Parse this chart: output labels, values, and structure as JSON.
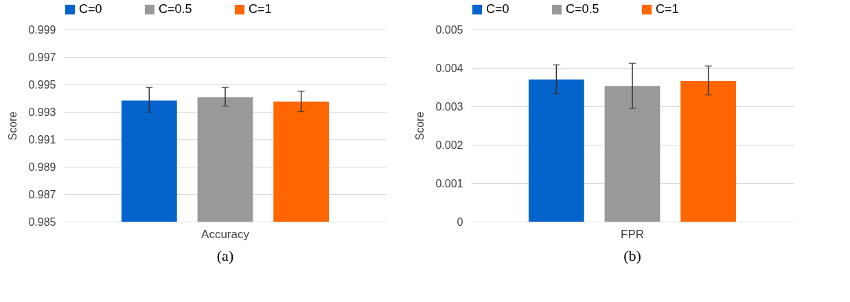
{
  "chart_data": [
    {
      "type": "bar",
      "ylabel": "Score",
      "categories": [
        "Accuracy"
      ],
      "ylim": [
        0.985,
        0.999
      ],
      "yticks": [
        0.985,
        0.987,
        0.989,
        0.991,
        0.993,
        0.995,
        0.997,
        0.999
      ],
      "grid": "y",
      "legend": "top",
      "annotations": [
        "(a)"
      ],
      "series": [
        {
          "name": "C=0",
          "color": "#0563cc",
          "values": [
            0.99383
          ],
          "errors": [
            [
              0.99298,
              0.99478
            ]
          ]
        },
        {
          "name": "C=0.5",
          "color": "#999999",
          "values": [
            0.99407
          ],
          "errors": [
            [
              0.99342,
              0.99478
            ]
          ]
        },
        {
          "name": "C=1",
          "color": "#ff6600",
          "values": [
            0.99375
          ],
          "errors": [
            [
              0.99302,
              0.9945
            ]
          ]
        }
      ]
    },
    {
      "type": "bar",
      "ylabel": "Score",
      "categories": [
        "FPR"
      ],
      "ylim": [
        0,
        0.005
      ],
      "yticks": [
        0,
        0.001,
        0.002,
        0.003,
        0.004,
        0.005
      ],
      "grid": "y",
      "legend": "top",
      "annotations": [
        "(b)"
      ],
      "series": [
        {
          "name": "C=0",
          "color": "#0563cc",
          "values": [
            0.0037
          ],
          "errors": [
            [
              0.00333,
              0.00408
            ]
          ]
        },
        {
          "name": "C=0.5",
          "color": "#999999",
          "values": [
            0.00353
          ],
          "errors": [
            [
              0.00295,
              0.00412
            ]
          ]
        },
        {
          "name": "C=1",
          "color": "#ff6600",
          "values": [
            0.00366
          ],
          "errors": [
            [
              0.0033,
              0.00405
            ]
          ]
        }
      ]
    }
  ]
}
